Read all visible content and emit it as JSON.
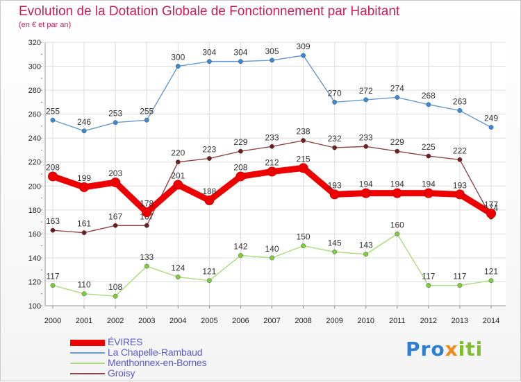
{
  "header": {
    "title": "Evolution de la Dotation Globale de Fonctionnement par Habitant",
    "subtitle": "(en € et par an)"
  },
  "colors": {
    "title": "#c81e5a",
    "legend_text": "#5a5ac8",
    "tick_text": "#222222",
    "grid": "#dddddd"
  },
  "logo": {
    "part1": "Pro",
    "part2": "x",
    "part3": "iti"
  },
  "chart_data": {
    "type": "line",
    "title": "Evolution de la Dotation Globale de Fonctionnement par Habitant",
    "subtitle": "(en € et par an)",
    "xlabel": "",
    "ylabel": "",
    "ylim": [
      100,
      320
    ],
    "yticks": [
      100,
      120,
      140,
      160,
      180,
      200,
      220,
      240,
      260,
      280,
      300,
      320
    ],
    "grid": true,
    "legend_position": "bottom-left",
    "categories": [
      "2000",
      "2001",
      "2002",
      "2003",
      "2004",
      "2005",
      "2006",
      "2007",
      "2008",
      "2009",
      "2010",
      "2011",
      "2012",
      "2013",
      "2014"
    ],
    "series": [
      {
        "name": "La Chapelle-Rambaud",
        "color": "#6699cc",
        "point_color": "#3a8ad0",
        "emphasis": false,
        "values": [
          255,
          246,
          253,
          255,
          300,
          304,
          304,
          305,
          309,
          270,
          272,
          274,
          268,
          263,
          249
        ]
      },
      {
        "name": "Menthonnex-en-Bornes",
        "color": "#a8dc7c",
        "point_color": "#7ccc3c",
        "emphasis": false,
        "values": [
          117,
          110,
          108,
          133,
          124,
          121,
          142,
          140,
          150,
          145,
          143,
          160,
          117,
          117,
          121
        ]
      },
      {
        "name": "Groisy",
        "color": "#8c4646",
        "point_color": "#6e1e1e",
        "emphasis": false,
        "values": [
          163,
          161,
          167,
          167,
          220,
          223,
          229,
          233,
          238,
          232,
          233,
          229,
          225,
          222,
          174
        ]
      },
      {
        "name": "ÉVIRES",
        "color": "#ee0000",
        "point_color": "#ee0000",
        "emphasis": true,
        "values": [
          208,
          199,
          203,
          178,
          201,
          188,
          208,
          212,
          215,
          193,
          194,
          194,
          194,
          193,
          177
        ]
      }
    ],
    "legend_order": [
      "ÉVIRES",
      "La Chapelle-Rambaud",
      "Menthonnex-en-Bornes",
      "Groisy"
    ]
  }
}
